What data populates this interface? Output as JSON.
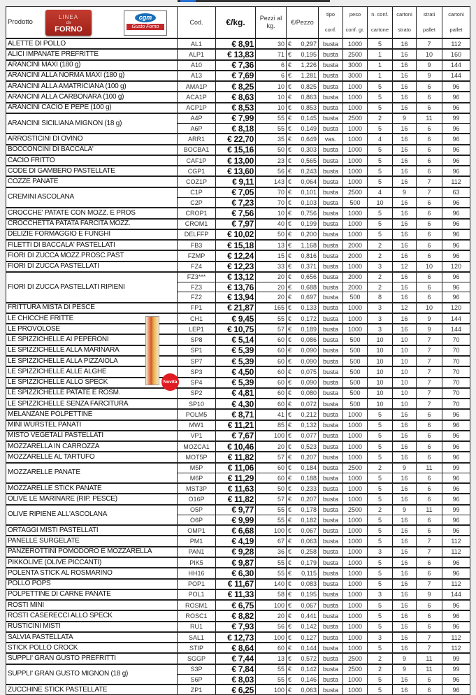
{
  "header": {
    "prodotto": "Prodotto",
    "logo_forno": {
      "l1": "LINEA",
      "l2": "da",
      "l3": "FORNO"
    },
    "logo_cgm": {
      "top": "cgm",
      "bottom": "Gusto Forno"
    },
    "cod": "Cod.",
    "eur_kg": "€/kg.",
    "pezzi": "Pezzi al kg.",
    "eur_pezzo": "€/Pezzo",
    "tipo": [
      "tipo",
      "conf."
    ],
    "peso": [
      "peso",
      "conf. gr."
    ],
    "nconf": [
      "n. conf.",
      "cartone"
    ],
    "cartoni_strato": [
      "cartoni",
      "strato"
    ],
    "strati_pallet": [
      "strati",
      "pallet"
    ],
    "cartoni_pallet": [
      "cartoni",
      "pallet"
    ]
  },
  "currency": "€",
  "badge_novita": "Novità",
  "spizzichelle_logo": "Spizzichelle",
  "columns": [
    "cod",
    "eur_kg",
    "pezzi",
    "eur_pezzo",
    "tipo",
    "peso",
    "nconf",
    "cartoni_strato",
    "strati_pallet",
    "cartoni_pallet"
  ],
  "products": [
    {
      "name": "ALETTE DI POLLO",
      "variants": [
        [
          "AL1",
          "€ 8,91",
          "30",
          "0,297",
          "busta",
          "1000",
          "5",
          "16",
          "7",
          "112"
        ]
      ]
    },
    {
      "name": "ALICI IMPANATE PREFRITTE",
      "variants": [
        [
          "ALP1",
          "€ 13,83",
          "71",
          "0,195",
          "busta",
          "2500",
          "1",
          "16",
          "10",
          "160"
        ]
      ]
    },
    {
      "name": "ARANCINI MAXI (180 g)",
      "variants": [
        [
          "A10",
          "€ 7,36",
          "6",
          "1,226",
          "busta",
          "3000",
          "1",
          "16",
          "9",
          "144"
        ]
      ]
    },
    {
      "name": "ARANCINI ALLA NORMA MAXI (180 g)",
      "variants": [
        [
          "A13",
          "€ 7,69",
          "6",
          "1,281",
          "busta",
          "3000",
          "1",
          "16",
          "9",
          "144"
        ]
      ]
    },
    {
      "name": "ARANCINI ALLA AMATRICIANA (100 g)",
      "variants": [
        [
          "AMA1P",
          "€ 8,25",
          "10",
          "0,825",
          "busta",
          "1000",
          "5",
          "16",
          "6",
          "96"
        ]
      ]
    },
    {
      "name": "ARANCINI ALLA CARBONARA (100 g)",
      "variants": [
        [
          "ACA1P",
          "€ 8,63",
          "10",
          "0,863",
          "busta",
          "1000",
          "5",
          "16",
          "6",
          "96"
        ]
      ]
    },
    {
      "name": "ARANCINI CACIO E PEPE (100 g)",
      "variants": [
        [
          "ACP1P",
          "€ 8,53",
          "10",
          "0,853",
          "busta",
          "1000",
          "5",
          "16",
          "6",
          "96"
        ]
      ]
    },
    {
      "name": "ARANCINI SICILIANA MIGNON (18 g)",
      "variants": [
        [
          "A4P",
          "€ 7,99",
          "55",
          "0,145",
          "busta",
          "2500",
          "2",
          "9",
          "11",
          "99"
        ],
        [
          "A6P",
          "€ 8,18",
          "55",
          "0,149",
          "busta",
          "1000",
          "5",
          "16",
          "6",
          "96"
        ]
      ]
    },
    {
      "name": "ARROSTICINI DI OVINO",
      "variants": [
        [
          "ARR1",
          "€ 22,70",
          "35",
          "0,649",
          "vas.",
          "1000",
          "4",
          "16",
          "6",
          "96"
        ]
      ]
    },
    {
      "name": "BOCCONCINI DI BACCALA'",
      "variants": [
        [
          "BOCBA1",
          "€ 15,16",
          "50",
          "0,303",
          "busta",
          "1000",
          "5",
          "16",
          "6",
          "96"
        ]
      ]
    },
    {
      "name": "CACIO FRITTO",
      "variants": [
        [
          "CAF1P",
          "€ 13,00",
          "23",
          "0,565",
          "busta",
          "1000",
          "5",
          "16",
          "6",
          "96"
        ]
      ]
    },
    {
      "name": "CODE DI GAMBERO PASTELLATE",
      "variants": [
        [
          "CGP1",
          "€ 13,60",
          "56",
          "0,243",
          "busta",
          "1000",
          "5",
          "16",
          "6",
          "96"
        ]
      ]
    },
    {
      "name": "COZZE PANATE",
      "variants": [
        [
          "COZ1P",
          "€ 9,11",
          "143",
          "0,064",
          "busta",
          "1000",
          "5",
          "16",
          "7",
          "112"
        ]
      ]
    },
    {
      "name": "CREMINI ASCOLANA",
      "variants": [
        [
          "C1P",
          "€ 7,05",
          "70",
          "0,101",
          "busta",
          "2500",
          "4",
          "9",
          "7",
          "63"
        ],
        [
          "C2P",
          "€ 7,23",
          "70",
          "0,103",
          "busta",
          "500",
          "10",
          "16",
          "6",
          "96"
        ]
      ]
    },
    {
      "name": "CROCCHE' PATATE CON MOZZ. E PROS",
      "variants": [
        [
          "CROP1",
          "€ 7,56",
          "10",
          "0,756",
          "busta",
          "1000",
          "5",
          "16",
          "6",
          "96"
        ]
      ]
    },
    {
      "name": "CROCCHETTA PATATA FARCITA MOZZ.",
      "variants": [
        [
          "CROM1",
          "€ 7,97",
          "40",
          "0,199",
          "busta",
          "1000",
          "5",
          "16",
          "6",
          "96"
        ]
      ]
    },
    {
      "name": "DELIZIE FORMAGGIO E FUNGHI",
      "variants": [
        [
          "DELFFP",
          "€ 10,02",
          "50",
          "0,200",
          "busta",
          "1000",
          "5",
          "16",
          "6",
          "96"
        ]
      ]
    },
    {
      "name": "FILETTI DI BACCALA' PASTELLATI",
      "variants": [
        [
          "FB3",
          "€ 15,18",
          "13",
          "1,168",
          "busta",
          "2000",
          "2",
          "16",
          "6",
          "96"
        ]
      ]
    },
    {
      "name": "FIORI DI ZUCCA MOZZ.PROSC.PAST",
      "variants": [
        [
          "FZMP",
          "€ 12,24",
          "15",
          "0,816",
          "busta",
          "2000",
          "2",
          "16",
          "6",
          "96"
        ]
      ]
    },
    {
      "name": "FIORI DI ZUCCA PASTELLATI",
      "variants": [
        [
          "FZ4",
          "€ 12,23",
          "33",
          "0,371",
          "busta",
          "1000",
          "3",
          "12",
          "10",
          "120"
        ]
      ]
    },
    {
      "name": "FIORI DI ZUCCA PASTELLATI RIPIENI",
      "variants": [
        [
          "FZ3***",
          "€ 13,12",
          "20",
          "0,656",
          "busta",
          "2000",
          "2",
          "16",
          "6",
          "96"
        ],
        [
          "FZ3",
          "€ 13,76",
          "20",
          "0,688",
          "busta",
          "2000",
          "2",
          "16",
          "6",
          "96"
        ],
        [
          "FZ2",
          "€ 13,94",
          "20",
          "0,697",
          "busta",
          "500",
          "8",
          "16",
          "6",
          "96"
        ]
      ]
    },
    {
      "name": "FRITTURA MISTA DI PESCE",
      "variants": [
        [
          "FP1",
          "€ 21,87",
          "165",
          "0,133",
          "busta",
          "1000",
          "3",
          "12",
          "10",
          "120"
        ]
      ]
    },
    {
      "name": "LE CHICCHE FRITTE",
      "variants": [
        [
          "CH1",
          "€ 9,45",
          "55",
          "0,172",
          "busta",
          "1000",
          "3",
          "16",
          "9",
          "144"
        ]
      ]
    },
    {
      "name": "LE PROVOLOSE",
      "variants": [
        [
          "LEP1",
          "€ 10,75",
          "57",
          "0,189",
          "busta",
          "1000",
          "3",
          "16",
          "9",
          "144"
        ]
      ]
    },
    {
      "name": "LE SPIZZICHELLE AI PEPERONI",
      "variants": [
        [
          "SP8",
          "€ 5,14",
          "60",
          "0,086",
          "busta",
          "500",
          "10",
          "10",
          "7",
          "70"
        ]
      ]
    },
    {
      "name": "LE SPIZZICHELLE ALLA MARINARA",
      "variants": [
        [
          "SP1",
          "€ 5,39",
          "60",
          "0,090",
          "busta",
          "500",
          "10",
          "10",
          "7",
          "70"
        ]
      ]
    },
    {
      "name": "LE SPIZZICHELLE ALLA PIZZAIOLA",
      "variants": [
        [
          "SP7",
          "€ 5,39",
          "60",
          "0,090",
          "busta",
          "500",
          "10",
          "10",
          "7",
          "70"
        ]
      ]
    },
    {
      "name": "LE SPIZZICHELLE ALLE ALGHE",
      "variants": [
        [
          "SP3",
          "€ 4,50",
          "60",
          "0,075",
          "busta",
          "500",
          "10",
          "10",
          "7",
          "70"
        ]
      ]
    },
    {
      "name": "LE SPIZZICHELLE ALLO SPECK",
      "variants": [
        [
          "SP4",
          "€ 5,39",
          "60",
          "0,090",
          "busta",
          "500",
          "10",
          "10",
          "7",
          "70"
        ]
      ]
    },
    {
      "name": "LE SPIZZICHELLE PATATE E ROSM.",
      "variants": [
        [
          "SP2",
          "€ 4,81",
          "60",
          "0,080",
          "busta",
          "500",
          "10",
          "10",
          "7",
          "70"
        ]
      ]
    },
    {
      "name": "LE SPIZZICHELLE SENZA FARCITURA",
      "variants": [
        [
          "SP10",
          "€ 4,30",
          "60",
          "0,072",
          "busta",
          "500",
          "10",
          "10",
          "7",
          "70"
        ]
      ]
    },
    {
      "name": "MELANZANE POLPETTINE",
      "variants": [
        [
          "POLM5",
          "€ 8,71",
          "41",
          "0,212",
          "busta",
          "1000",
          "5",
          "16",
          "6",
          "96"
        ]
      ]
    },
    {
      "name": "MINI WURSTEL PANATI",
      "variants": [
        [
          "MW1",
          "€ 11,21",
          "85",
          "0,132",
          "busta",
          "1000",
          "5",
          "16",
          "6",
          "96"
        ]
      ]
    },
    {
      "name": "MISTO VEGETALI PASTELLATI",
      "variants": [
        [
          "VP1",
          "€ 7,67",
          "100",
          "0,077",
          "busta",
          "1000",
          "5",
          "16",
          "6",
          "96"
        ]
      ]
    },
    {
      "name": "MOZZARELLA IN CARROZZA",
      "variants": [
        [
          "MOZCA1",
          "€ 10,46",
          "20",
          "0,523",
          "busta",
          "1000",
          "5",
          "16",
          "6",
          "96"
        ]
      ]
    },
    {
      "name": "MOZZARELLE AL TARTUFO",
      "variants": [
        [
          "MOT5P",
          "€ 11,82",
          "57",
          "0,207",
          "busta",
          "1000",
          "5",
          "16",
          "6",
          "96"
        ]
      ]
    },
    {
      "name": "MOZZARELLE PANATE",
      "variants": [
        [
          "M5P",
          "€ 11,06",
          "60",
          "0,184",
          "busta",
          "2500",
          "2",
          "9",
          "11",
          "99"
        ],
        [
          "M6P",
          "€ 11,29",
          "60",
          "0,188",
          "busta",
          "1000",
          "5",
          "16",
          "6",
          "96"
        ]
      ]
    },
    {
      "name": "MOZZARELLE STICK PANATE",
      "variants": [
        [
          "MST3P",
          "€ 11,63",
          "50",
          "0,233",
          "busta",
          "1000",
          "5",
          "16",
          "6",
          "96"
        ]
      ]
    },
    {
      "name": "OLIVE LE MARINARE (RIP. PESCE)",
      "variants": [
        [
          "O16P",
          "€ 11,82",
          "57",
          "0,207",
          "busta",
          "1000",
          "5",
          "16",
          "6",
          "96"
        ]
      ]
    },
    {
      "name": "OLIVE RIPIENE ALL'ASCOLANA",
      "variants": [
        [
          "O5P",
          "€ 9,77",
          "55",
          "0,178",
          "busta",
          "2500",
          "2",
          "9",
          "11",
          "99"
        ],
        [
          "O6P",
          "€ 9,99",
          "55",
          "0,182",
          "busta",
          "1000",
          "5",
          "16",
          "6",
          "96"
        ]
      ]
    },
    {
      "name": "ORTAGGI MISTI PASTELLATI",
      "variants": [
        [
          "OMP1",
          "€ 6,68",
          "100",
          "0,067",
          "busta",
          "1000",
          "5",
          "16",
          "6",
          "96"
        ]
      ]
    },
    {
      "name": "PANELLE SURGELATE",
      "variants": [
        [
          "PM1",
          "€ 4,19",
          "67",
          "0,063",
          "busta",
          "1000",
          "5",
          "16",
          "7",
          "112"
        ]
      ]
    },
    {
      "name": "PANZEROTTINI POMODORO E MOZZARELLA",
      "variants": [
        [
          "PAN1",
          "€ 9,28",
          "36",
          "0,258",
          "busta",
          "1000",
          "3",
          "16",
          "7",
          "112"
        ]
      ]
    },
    {
      "name": "PIKKOLIVE (OLIVE PICCANTI)",
      "variants": [
        [
          "PIK5",
          "€ 9,87",
          "55",
          "0,179",
          "busta",
          "1000",
          "5",
          "16",
          "6",
          "96"
        ]
      ]
    },
    {
      "name": "POLENTA STICK AL ROSMARINO",
      "variants": [
        [
          "HH16",
          "€ 6,30",
          "55",
          "0,115",
          "busta",
          "1000",
          "5",
          "16",
          "6",
          "96"
        ]
      ]
    },
    {
      "name": "POLLO POPS",
      "variants": [
        [
          "POP1",
          "€ 11,67",
          "140",
          "0,083",
          "busta",
          "1000",
          "5",
          "16",
          "7",
          "112"
        ]
      ]
    },
    {
      "name": "POLPETTINE DI CARNE PANATE",
      "variants": [
        [
          "POL1",
          "€ 11,33",
          "58",
          "0,195",
          "busta",
          "1000",
          "3",
          "16",
          "9",
          "144"
        ]
      ]
    },
    {
      "name": "ROSTI MINI",
      "variants": [
        [
          "ROSM1",
          "€ 6,75",
          "100",
          "0,067",
          "busta",
          "1000",
          "5",
          "16",
          "6",
          "96"
        ]
      ]
    },
    {
      "name": "ROSTI CASERECCI ALLO SPECK",
      "variants": [
        [
          "ROSC1",
          "€ 8,82",
          "20",
          "0,441",
          "busta",
          "1000",
          "5",
          "16",
          "6",
          "96"
        ]
      ]
    },
    {
      "name": "RUSTICINI MISTI",
      "variants": [
        [
          "RU1",
          "€ 7,93",
          "56",
          "0,142",
          "busta",
          "1000",
          "5",
          "16",
          "6",
          "96"
        ]
      ]
    },
    {
      "name": "SALVIA PASTELLATA",
      "variants": [
        [
          "SAL1",
          "€ 12,73",
          "100",
          "0,127",
          "busta",
          "1000",
          "3",
          "16",
          "7",
          "112"
        ]
      ]
    },
    {
      "name": "STICK POLLO CROCK",
      "variants": [
        [
          "STIP",
          "€ 8,64",
          "60",
          "0,144",
          "busta",
          "1000",
          "5",
          "16",
          "7",
          "112"
        ]
      ]
    },
    {
      "name": "SUPPLI' GRAN GUSTO PREFRITTI",
      "variants": [
        [
          "SGGP",
          "€ 7,44",
          "13",
          "0,572",
          "busta",
          "2500",
          "2",
          "9",
          "11",
          "99"
        ]
      ]
    },
    {
      "name": "SUPPLI' GRAN GUSTO MIGNON (18 g)",
      "variants": [
        [
          "S3P",
          "€ 7,84",
          "55",
          "0,142",
          "busta",
          "2500",
          "2",
          "9",
          "11",
          "99"
        ],
        [
          "S6P",
          "€ 8,03",
          "55",
          "0,146",
          "busta",
          "1000",
          "5",
          "16",
          "6",
          "96"
        ]
      ]
    },
    {
      "name": "ZUCCHINE STICK PASTELLATE",
      "variants": [
        [
          "ZP1",
          "€ 6,25",
          "100",
          "0,063",
          "busta",
          "1000",
          "5",
          "16",
          "6",
          "96"
        ]
      ]
    }
  ]
}
